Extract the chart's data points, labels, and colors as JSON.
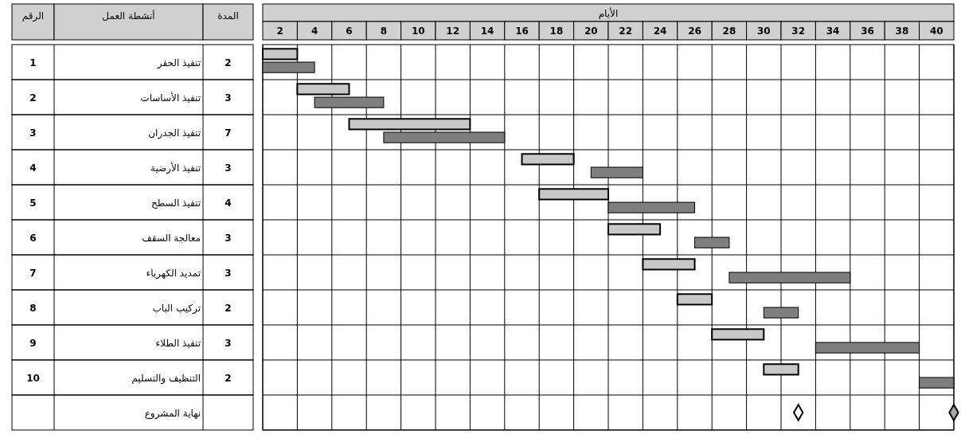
{
  "chart_data": {
    "type": "bar",
    "orientation": "horizontal",
    "xlabel": "الأيام",
    "ylabel": "أنشطة العمل",
    "annotations": [
      "الرقم",
      "المدة"
    ],
    "categories": [
      "تنفيذ الحفر",
      "تنفيذ الأساسات",
      "تنفيذ الجدران",
      "تنفيذ الأرضية",
      "تنفيذ السطح",
      "معالجة السقف",
      "تمديد الكهرباء",
      "تركيب الباب",
      "تنفيذ الطلاء",
      "التنظيف والتسليم",
      "نهاية المشروع"
    ],
    "y2_categories": [
      "1",
      "2",
      "3",
      "4",
      "5",
      "6",
      "7",
      "8",
      "9",
      "10",
      null
    ],
    "xlim": [
      1,
      41
    ],
    "xticks": [
      2,
      4,
      6,
      8,
      10,
      12,
      14,
      16,
      18,
      20,
      22,
      24,
      26,
      28,
      30,
      32,
      34,
      36,
      38,
      40
    ],
    "grid": true,
    "series": [
      {
        "color": "#c8c8c8",
        "base": [
          1,
          3,
          6,
          16,
          17,
          21,
          23,
          25,
          27,
          30,
          null
        ],
        "values": [
          2,
          3,
          7,
          3,
          4,
          3,
          3,
          2,
          3,
          2,
          null
        ],
        "value_labels": [
          "2",
          "3",
          "7",
          "3",
          "4",
          "3",
          "3",
          "2",
          "3",
          "2",
          null
        ]
      },
      {
        "color": "#7f7f7f",
        "base": [
          1,
          4,
          8,
          20,
          21,
          26,
          28,
          30,
          33,
          39,
          null
        ],
        "values": [
          3,
          4,
          7,
          3,
          5,
          2,
          7,
          2,
          6,
          2,
          null
        ]
      },
      {
        "type": "scatter",
        "color": "#ffffff",
        "marker": "diamond",
        "values": [
          null,
          null,
          null,
          null,
          null,
          null,
          null,
          null,
          null,
          null,
          32
        ]
      },
      {
        "type": "scatter",
        "color": "#a6a6a6",
        "marker": "diamond",
        "values": [
          null,
          null,
          null,
          null,
          null,
          null,
          null,
          null,
          null,
          null,
          41
        ]
      }
    ]
  }
}
